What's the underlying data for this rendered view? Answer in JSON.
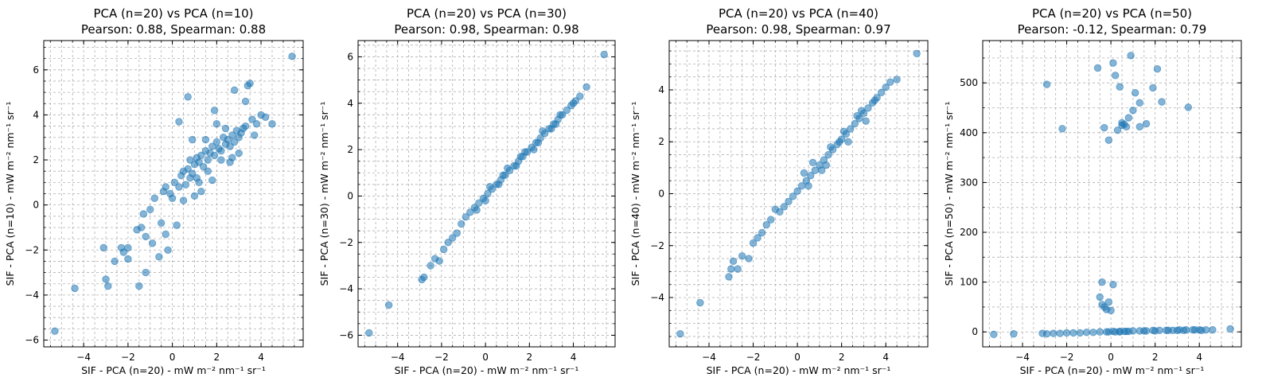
{
  "chart_data": [
    {
      "type": "scatter",
      "title": "PCA (n=20) vs PCA (n=10)",
      "subtitle": "Pearson: 0.88, Spearman: 0.88",
      "xlabel": "SIF - PCA (n=20) - mW m⁻² nm⁻¹ sr⁻¹",
      "ylabel": "SIF - PCA (n=10) - mW m⁻² nm⁻¹ sr⁻¹",
      "xlim": [
        -5.8,
        5.9
      ],
      "ylim": [
        -6.3,
        7.3
      ],
      "xticks": [
        -4,
        -2,
        0,
        2,
        4
      ],
      "yticks": [
        -6,
        -4,
        -2,
        0,
        2,
        4,
        6
      ],
      "grid": true,
      "points": {
        "x": [
          -5.3,
          -4.4,
          -3.1,
          -3.0,
          -2.9,
          -2.6,
          -2.3,
          -2.2,
          -2.0,
          -2.0,
          -1.6,
          -1.5,
          -1.4,
          -1.3,
          -1.2,
          -1.2,
          -1.0,
          -0.9,
          -0.8,
          -0.6,
          -0.5,
          -0.4,
          -0.3,
          -0.3,
          -0.2,
          -0.1,
          0.0,
          0.1,
          0.2,
          0.3,
          0.4,
          0.5,
          0.6,
          0.7,
          0.8,
          0.8,
          0.9,
          1.0,
          1.0,
          1.1,
          1.2,
          1.3,
          1.4,
          1.5,
          1.6,
          1.7,
          1.8,
          1.9,
          2.0,
          2.1,
          2.2,
          2.3,
          2.4,
          2.5,
          2.6,
          2.7,
          2.8,
          2.9,
          3.0,
          3.1,
          3.2,
          3.3,
          3.4,
          3.5,
          3.6,
          3.8,
          4.0,
          4.2,
          4.5,
          5.4,
          0.3,
          0.7,
          1.1,
          1.6,
          1.9,
          2.4,
          2.8,
          3.3,
          3.7,
          0.9,
          1.3,
          1.8,
          2.2,
          2.6,
          3.0,
          0.5,
          1.5,
          2.0,
          1.2,
          2.7
        ],
        "y": [
          -5.6,
          -3.7,
          -1.9,
          -3.3,
          -3.6,
          -2.5,
          -1.9,
          -2.1,
          -1.9,
          -2.4,
          -1.1,
          -3.6,
          -1.0,
          -0.4,
          -1.4,
          -3.0,
          -0.2,
          -1.7,
          0.3,
          -2.3,
          -0.8,
          0.6,
          -1.3,
          0.8,
          -2.0,
          0.5,
          0.3,
          1.0,
          -0.9,
          0.8,
          1.3,
          1.5,
          0.9,
          1.6,
          1.2,
          2.0,
          1.4,
          1.8,
          0.4,
          2.1,
          1.9,
          2.2,
          1.7,
          2.4,
          2.0,
          2.3,
          2.6,
          2.2,
          2.8,
          2.5,
          2.4,
          3.0,
          2.7,
          2.9,
          2.6,
          3.1,
          2.8,
          3.3,
          3.0,
          3.2,
          3.4,
          3.5,
          5.3,
          5.4,
          3.8,
          3.6,
          4.0,
          3.9,
          3.6,
          6.6,
          3.7,
          4.8,
          1.2,
          1.5,
          4.2,
          3.4,
          5.1,
          4.6,
          3.1,
          2.9,
          0.6,
          1.1,
          2.0,
          1.9,
          2.3,
          0.2,
          2.9,
          3.6,
          1.0,
          2.1
        ]
      }
    },
    {
      "type": "scatter",
      "title": "PCA (n=20) vs PCA (n=30)",
      "subtitle": "Pearson: 0.98, Spearman: 0.98",
      "xlabel": "SIF - PCA (n=20) - mW m⁻² nm⁻¹ sr⁻¹",
      "ylabel": "SIF - PCA (n=30) - mW m⁻² nm⁻¹ sr⁻¹",
      "xlim": [
        -5.8,
        5.9
      ],
      "ylim": [
        -6.5,
        6.7
      ],
      "xticks": [
        -4,
        -2,
        0,
        2,
        4
      ],
      "yticks": [
        -6,
        -4,
        -2,
        0,
        2,
        4,
        6
      ],
      "grid": true,
      "points": {
        "x": [
          -5.3,
          -4.4,
          -2.9,
          -2.8,
          -2.5,
          -2.3,
          -2.1,
          -1.9,
          -1.7,
          -1.5,
          -1.3,
          -1.1,
          -0.9,
          -0.7,
          -0.5,
          -0.3,
          -0.1,
          0.1,
          0.3,
          0.5,
          0.7,
          0.9,
          1.1,
          1.3,
          1.5,
          1.7,
          1.9,
          2.1,
          2.3,
          2.5,
          2.7,
          2.9,
          3.1,
          3.3,
          3.5,
          3.7,
          3.9,
          4.1,
          4.3,
          4.6,
          5.4,
          0.2,
          0.6,
          1.0,
          1.4,
          1.8,
          2.2,
          2.6,
          3.0,
          3.4,
          0.0,
          0.8,
          1.6,
          2.4,
          3.2,
          -0.4,
          4.0
        ],
        "y": [
          -5.9,
          -4.7,
          -3.6,
          -3.5,
          -3.0,
          -2.7,
          -2.8,
          -2.3,
          -2.0,
          -1.8,
          -1.6,
          -1.2,
          -0.9,
          -0.7,
          -0.5,
          -0.3,
          -0.1,
          0.1,
          0.3,
          0.5,
          0.7,
          0.9,
          1.1,
          1.3,
          1.5,
          1.7,
          1.9,
          2.1,
          2.3,
          2.5,
          2.7,
          2.9,
          3.1,
          3.3,
          3.5,
          3.7,
          3.9,
          4.1,
          4.3,
          4.7,
          6.1,
          0.4,
          0.5,
          1.2,
          1.3,
          1.9,
          2.0,
          2.8,
          2.9,
          3.5,
          -0.2,
          0.9,
          1.7,
          2.3,
          3.1,
          -0.6,
          4.0
        ]
      }
    },
    {
      "type": "scatter",
      "title": "PCA (n=20) vs PCA (n=40)",
      "subtitle": "Pearson: 0.98, Spearman: 0.97",
      "xlabel": "SIF - PCA (n=20) - mW m⁻² nm⁻¹ sr⁻¹",
      "ylabel": "SIF - PCA (n=40) - mW m⁻² nm⁻¹ sr⁻¹",
      "xlim": [
        -5.8,
        5.9
      ],
      "ylim": [
        -5.9,
        5.9
      ],
      "xticks": [
        -4,
        -2,
        0,
        2,
        4
      ],
      "yticks": [
        -4,
        -2,
        0,
        2,
        4
      ],
      "grid": true,
      "points": {
        "x": [
          -5.3,
          -4.4,
          -3.1,
          -3.0,
          -2.9,
          -2.7,
          -2.5,
          -2.2,
          -2.0,
          -1.8,
          -1.6,
          -1.4,
          -1.2,
          -1.0,
          -0.8,
          -0.6,
          -0.4,
          -0.2,
          0.0,
          0.2,
          0.4,
          0.6,
          0.8,
          1.0,
          1.2,
          1.4,
          1.6,
          1.8,
          2.0,
          2.2,
          2.4,
          2.6,
          2.8,
          3.0,
          3.2,
          3.4,
          3.6,
          3.8,
          4.0,
          4.2,
          4.5,
          5.4,
          0.3,
          0.7,
          1.1,
          1.5,
          1.9,
          2.3,
          2.7,
          3.1,
          3.5,
          0.5,
          1.3,
          2.1,
          2.9
        ],
        "y": [
          -5.4,
          -4.2,
          -3.2,
          -2.9,
          -2.6,
          -2.9,
          -2.4,
          -2.5,
          -1.9,
          -1.7,
          -1.5,
          -1.2,
          -1.0,
          -0.6,
          -0.7,
          -0.5,
          -0.3,
          -0.1,
          0.1,
          0.3,
          0.5,
          0.7,
          0.9,
          1.1,
          1.3,
          1.5,
          1.7,
          1.9,
          2.1,
          2.3,
          2.5,
          2.7,
          2.9,
          3.1,
          3.3,
          3.5,
          3.7,
          3.9,
          4.1,
          4.3,
          4.4,
          5.4,
          0.8,
          1.2,
          0.9,
          1.8,
          2.0,
          2.0,
          3.0,
          2.8,
          3.6,
          0.3,
          1.1,
          2.4,
          3.2
        ]
      }
    },
    {
      "type": "scatter",
      "title": "PCA (n=20) vs PCA (n=50)",
      "subtitle": "Pearson: -0.12, Spearman: 0.79",
      "xlabel": "SIF - PCA (n=20) - mW m⁻² nm⁻¹ sr⁻¹",
      "ylabel": "SIF - PCA (n=50) - mW m⁻² nm⁻¹ sr⁻¹",
      "xlim": [
        -5.8,
        5.9
      ],
      "ylim": [
        -30,
        585
      ],
      "xticks": [
        -4,
        -2,
        0,
        2,
        4
      ],
      "yticks": [
        0,
        100,
        200,
        300,
        400,
        500
      ],
      "grid": true,
      "points": {
        "x": [
          -5.3,
          -4.4,
          -3.1,
          -2.9,
          -2.6,
          -2.3,
          -2.0,
          -1.7,
          -1.4,
          -1.1,
          -0.8,
          -0.5,
          -0.2,
          0.1,
          0.4,
          0.7,
          1.0,
          1.3,
          1.6,
          1.9,
          2.2,
          2.5,
          2.8,
          3.1,
          3.4,
          3.7,
          4.0,
          4.3,
          4.6,
          5.4,
          -0.6,
          -0.3,
          -0.1,
          0.1,
          0.2,
          0.4,
          0.5,
          0.7,
          0.9,
          1.1,
          1.3,
          1.6,
          1.9,
          2.1,
          2.3,
          -2.9,
          -2.2,
          -0.4,
          -0.5,
          0.1,
          0.3,
          0.6,
          0.8,
          1.0,
          1.3,
          3.5,
          -0.4,
          -0.3,
          -0.2,
          -0.1,
          0.0,
          -0.1,
          0.2,
          0.4,
          0.6,
          0.8,
          0.5,
          1.5,
          2.0,
          2.6,
          3.0,
          3.3,
          3.8,
          4.1
        ],
        "y": [
          -5,
          -4,
          -3,
          -4,
          -3,
          -3,
          -2,
          -2,
          -2,
          -1,
          -1,
          0,
          0,
          1,
          1,
          1,
          2,
          2,
          2,
          3,
          3,
          3,
          3,
          4,
          4,
          4,
          4,
          4,
          4,
          6,
          530,
          410,
          385,
          540,
          515,
          492,
          420,
          412,
          555,
          480,
          460,
          418,
          490,
          528,
          462,
          497,
          408,
          100,
          70,
          95,
          405,
          417,
          430,
          445,
          412,
          451,
          55,
          50,
          45,
          60,
          43,
          0,
          0,
          0,
          1,
          1,
          415,
          2,
          2,
          3,
          3,
          3,
          4,
          3
        ]
      }
    }
  ]
}
